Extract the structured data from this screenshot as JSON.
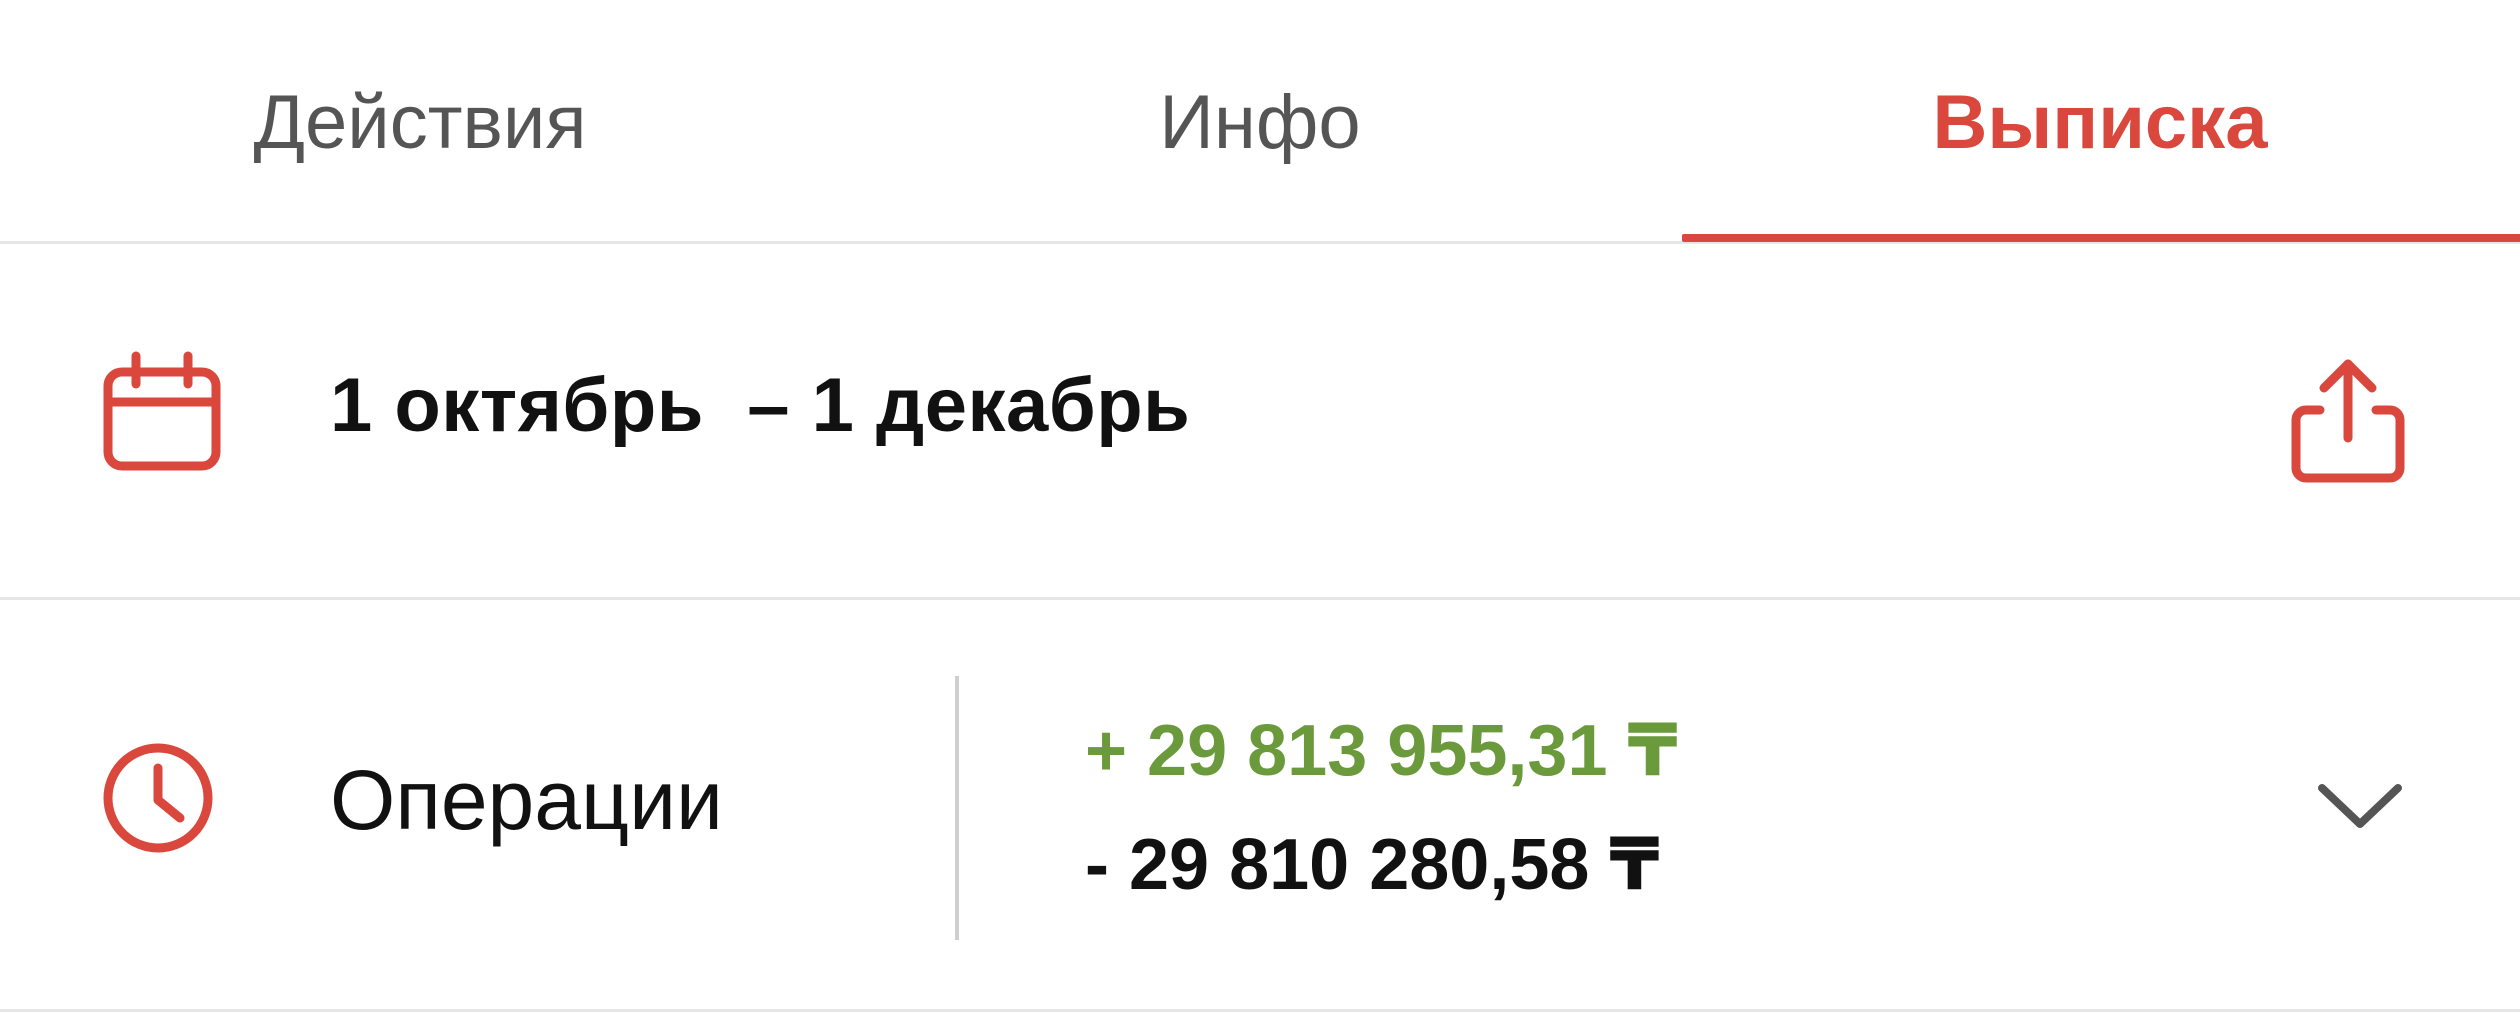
{
  "tabs": [
    {
      "label": "Действия",
      "active": false
    },
    {
      "label": "Инфо",
      "active": false
    },
    {
      "label": "Выписка",
      "active": true
    }
  ],
  "period": {
    "icon": "calendar-icon",
    "text": "1 октябрь  – 1 декабрь",
    "share_icon": "share-icon"
  },
  "operations": {
    "icon": "clock-icon",
    "label": "Операции",
    "income": "+ 29 813 955,31 ₸",
    "expense": "- 29 810 280,58 ₸",
    "expand_icon": "chevron-down-icon"
  },
  "colors": {
    "accent": "#d9473d",
    "income": "#6a9a3b",
    "text": "#111111",
    "muted": "#555555",
    "divider": "#e6e6e6"
  }
}
